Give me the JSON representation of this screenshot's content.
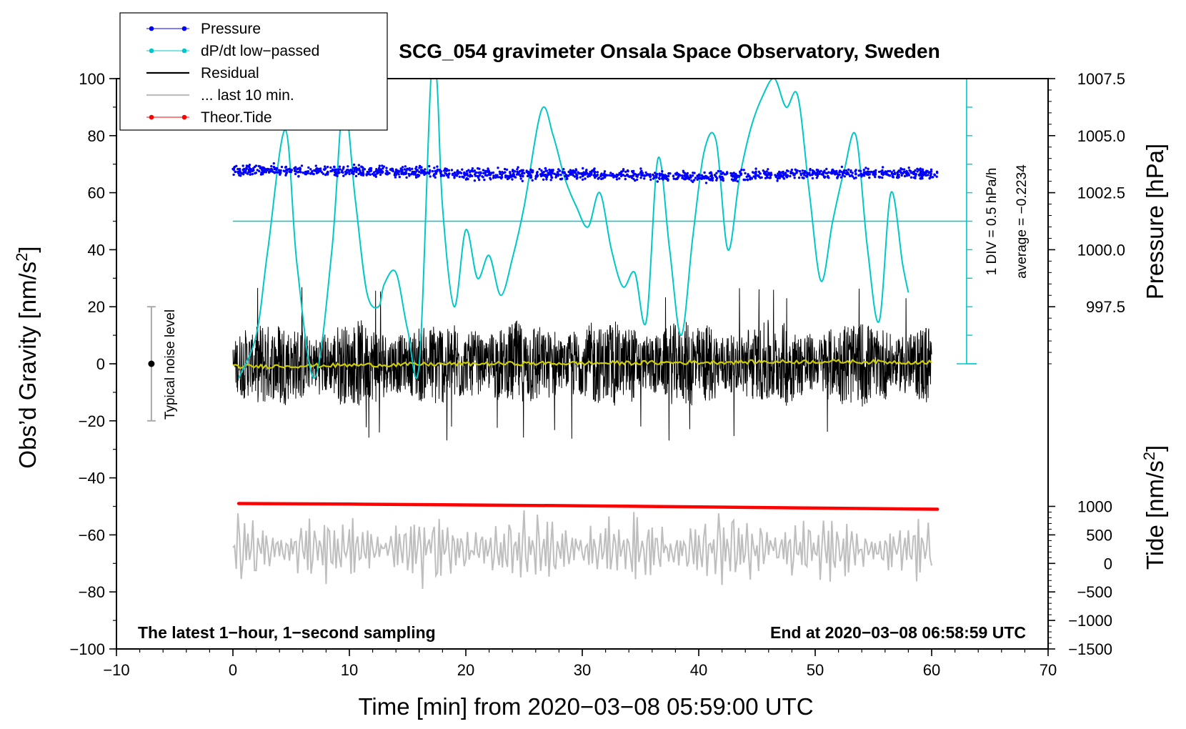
{
  "chart_data": {
    "type": "line",
    "title": "SCG_054 gravimeter Onsala Space Observatory, Sweden",
    "xlabel": "Time [min] from 2020−03−08 05:59:00 UTC",
    "ylabel_left_main": "Obs’d Gravity [nm/s",
    "ylabel_left_sup": "2",
    "ylabel_left_close": "]",
    "ylabel_right_pressure": "Pressure [hPa]",
    "ylabel_right_tide_main": "Tide [nm/s",
    "ylabel_right_tide_sup": "2",
    "ylabel_right_tide_close": "]",
    "xlim": [
      -10,
      70
    ],
    "ylim": [
      -100,
      100
    ],
    "x_ticks": [
      -10,
      0,
      10,
      20,
      30,
      40,
      50,
      60,
      70
    ],
    "x_tick_labels": [
      "−10",
      "0",
      "10",
      "20",
      "30",
      "40",
      "50",
      "60",
      "70"
    ],
    "y_ticks": [
      -100,
      -80,
      -60,
      -40,
      -20,
      0,
      20,
      40,
      60,
      80,
      100
    ],
    "y_tick_labels": [
      "−100",
      "−80",
      "−60",
      "−40",
      "−20",
      "0",
      "20",
      "40",
      "60",
      "80",
      "100"
    ],
    "pressure_ticks": [
      997.5,
      1000.0,
      1002.5,
      1005.0,
      1007.5
    ],
    "pressure_tick_labels": [
      "997.5",
      "1000.0",
      "1002.5",
      "1005.0",
      "1007.5"
    ],
    "pressure_map": {
      "data_at_y0": 995.0,
      "hpa_per_y_unit": 0.125
    },
    "tide_ticks": [
      -1500,
      -1000,
      -500,
      0,
      500,
      1000
    ],
    "tide_tick_labels": [
      "−1500",
      "−1000",
      "−500",
      "0",
      "500",
      "1000"
    ],
    "tide_map": {
      "data_at_y_minus100": -1500,
      "nms2_per_y_unit": 50
    },
    "legend": [
      {
        "label": "Pressure",
        "color": "#0000ff",
        "marker": "dot"
      },
      {
        "label": "dP/dt low−passed",
        "color": "#00c8c8",
        "marker": "dot"
      },
      {
        "label": "Residual",
        "color": "#000000",
        "marker": "none"
      },
      {
        "label": "... last 10 min.",
        "color": "#bebebe",
        "marker": "none"
      },
      {
        "label": "Theor.Tide",
        "color": "#ff0000",
        "marker": "dot"
      }
    ],
    "annotation_left": "The latest 1−hour, 1−second sampling",
    "annotation_right": "End at 2020−03−08 06:58:59 UTC",
    "noise_label": "Typical noise level",
    "noise_bar": {
      "x": -7,
      "y_low": -20,
      "y_high": 20,
      "center": 0
    },
    "dpdt_scale_label": "1 DIV = 0.5 hPa/h",
    "dpdt_average_label": "average = −0.2234",
    "dpdt_scale_axis": {
      "x": 63,
      "y_low": 0,
      "y_high": 100,
      "div_step": 10
    },
    "dpdt_reference_level": 50,
    "series": [
      {
        "name": "Pressure",
        "color": "#0000ff",
        "x": [
          0,
          5,
          10,
          15,
          20,
          25,
          30,
          35,
          40,
          45,
          50,
          55,
          60.5
        ],
        "y": [
          68,
          67.8,
          67.5,
          67.3,
          66.8,
          66.5,
          66.5,
          66.2,
          65.5,
          66,
          66.8,
          67,
          66.5
        ],
        "scatter_half_width": 1.8
      },
      {
        "name": "dP/dt low-passed",
        "color": "#00c8c8",
        "x": [
          0.5,
          2,
          3,
          4.5,
          5.5,
          7,
          8.5,
          9.5,
          10.5,
          11.5,
          12.5,
          13,
          14,
          15,
          16,
          17,
          17.5,
          18,
          19,
          20,
          21,
          22,
          23,
          24,
          25,
          26.5,
          27.5,
          28.5,
          29.5,
          30.5,
          31.5,
          32.5,
          33.5,
          34.5,
          35.5,
          36.5,
          37.5,
          38.5,
          39.5,
          40.5,
          41.5,
          42.5,
          43.5,
          44.5,
          45.5,
          46.5,
          47.5,
          48.5,
          49.5,
          50.5,
          51.5,
          52.5,
          53.5,
          54.5,
          55.5,
          56.5,
          57.5,
          58
        ],
        "y": [
          -5,
          10,
          40,
          82,
          35,
          -5,
          40,
          92,
          58,
          25,
          20,
          28,
          32,
          12,
          0,
          100,
          100,
          55,
          20,
          47,
          30,
          38,
          24,
          37,
          55,
          89,
          80,
          65,
          55,
          48,
          60,
          40,
          27,
          32,
          15,
          72,
          40,
          10,
          45,
          75,
          78,
          40,
          65,
          83,
          94,
          100,
          90,
          94,
          60,
          29,
          50,
          68,
          80,
          40,
          15,
          60,
          35,
          25
        ]
      },
      {
        "name": "Residual",
        "color": "#000000",
        "x": [
          0,
          60
        ],
        "center": 0,
        "typical_amplitude": 12,
        "max_amplitude": 27
      },
      {
        "name": "Residual smoothed",
        "color": "#cccc00",
        "x": [
          0,
          10,
          20,
          30,
          40,
          50,
          60
        ],
        "y": [
          -1,
          -0.5,
          0,
          0.2,
          0.5,
          0.8,
          0.5
        ]
      },
      {
        "name": "... last 10 min.",
        "color": "#bebebe",
        "x": [
          0,
          60
        ],
        "center": -65,
        "typical_amplitude": 10,
        "max_amplitude": 26
      },
      {
        "name": "Theor.Tide",
        "color": "#ff0000",
        "x": [
          0.5,
          10,
          20,
          30,
          40,
          50,
          60.5
        ],
        "y": [
          -49,
          -49.2,
          -49.5,
          -49.8,
          -50.2,
          -50.6,
          -51
        ]
      }
    ]
  }
}
